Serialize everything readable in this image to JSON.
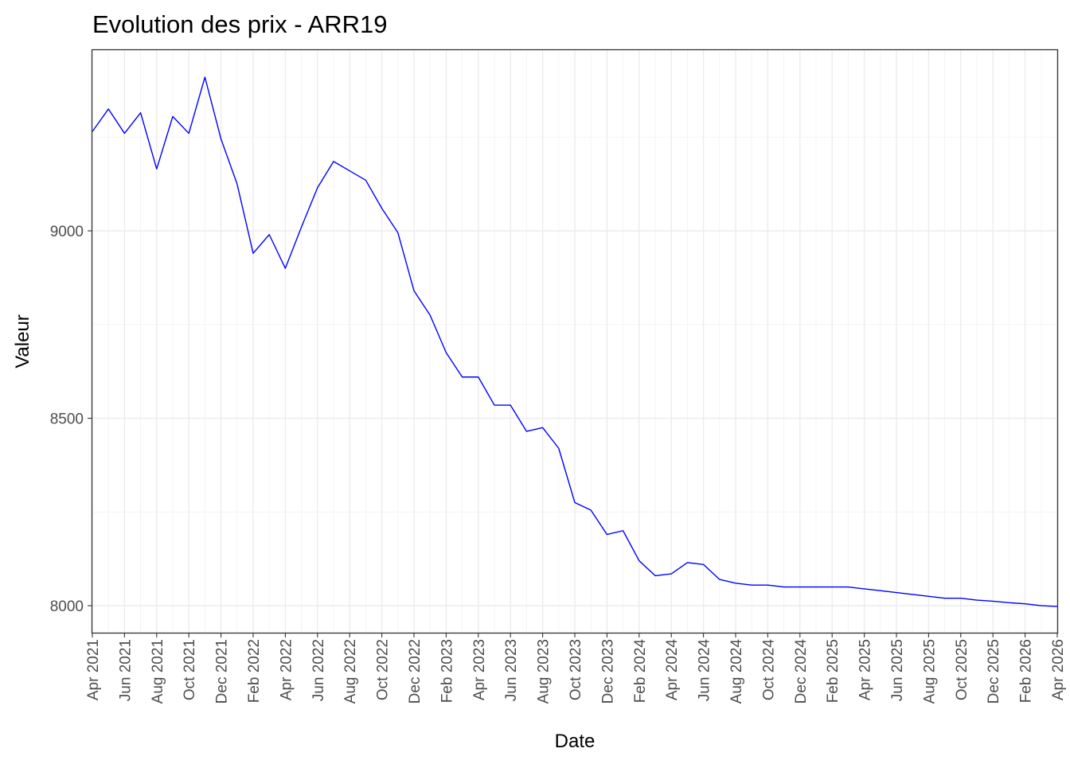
{
  "chart_data": {
    "type": "line",
    "title": "Evolution des prix - ARR19",
    "xlabel": "Date",
    "ylabel": "Valeur",
    "grid": true,
    "ylim": [
      7928,
      9482
    ],
    "y_ticks": [
      8000,
      8500,
      9000
    ],
    "y_minor_ticks": [
      8250,
      8750,
      9250
    ],
    "x_range": [
      "2021-04",
      "2026-04"
    ],
    "x_tick_labels": [
      "Apr 2021",
      "Jun 2021",
      "Aug 2021",
      "Oct 2021",
      "Dec 2021",
      "Feb 2022",
      "Apr 2022",
      "Jun 2022",
      "Aug 2022",
      "Oct 2022",
      "Dec 2022",
      "Feb 2023",
      "Apr 2023",
      "Jun 2023",
      "Aug 2023",
      "Oct 2023",
      "Dec 2023",
      "Feb 2024",
      "Apr 2024",
      "Jun 2024",
      "Aug 2024",
      "Oct 2024",
      "Dec 2024",
      "Feb 2025",
      "Apr 2025",
      "Jun 2025",
      "Aug 2025",
      "Oct 2025",
      "Dec 2025",
      "Feb 2026",
      "Apr 2026"
    ],
    "series": [
      {
        "name": "ARR19",
        "color": "#0000ff",
        "x": [
          "2021-04",
          "2021-05",
          "2021-06",
          "2021-07",
          "2021-08",
          "2021-09",
          "2021-10",
          "2021-11",
          "2021-12",
          "2022-01",
          "2022-02",
          "2022-03",
          "2022-04",
          "2022-05",
          "2022-06",
          "2022-07",
          "2022-08",
          "2022-09",
          "2022-10",
          "2022-11",
          "2022-12",
          "2023-01",
          "2023-02",
          "2023-03",
          "2023-04",
          "2023-05",
          "2023-06",
          "2023-07",
          "2023-08",
          "2023-09",
          "2023-10",
          "2023-11",
          "2023-12",
          "2024-01",
          "2024-02",
          "2024-03",
          "2024-04",
          "2024-05",
          "2024-06",
          "2024-07",
          "2024-08",
          "2024-09",
          "2024-10",
          "2024-11",
          "2024-12",
          "2025-01",
          "2025-02",
          "2025-03",
          "2025-04",
          "2025-05",
          "2025-06",
          "2025-07",
          "2025-08",
          "2025-09",
          "2025-10",
          "2025-11",
          "2025-12",
          "2026-01",
          "2026-02",
          "2026-03",
          "2026-04"
        ],
        "values": [
          9265,
          9325,
          9260,
          9315,
          9165,
          9305,
          9260,
          9410,
          9245,
          9125,
          8940,
          8990,
          8900,
          9010,
          9115,
          9185,
          9160,
          9135,
          9060,
          8995,
          8840,
          8775,
          8675,
          8610,
          8610,
          8535,
          8535,
          8465,
          8475,
          8420,
          8275,
          8255,
          8190,
          8200,
          8120,
          8080,
          8085,
          8115,
          8110,
          8070,
          8060,
          8055,
          8055,
          8050,
          8050,
          8050,
          8050,
          8050,
          8045,
          8040,
          8035,
          8030,
          8025,
          8020,
          8020,
          8015,
          8012,
          8008,
          8005,
          8000,
          7998
        ]
      }
    ]
  }
}
